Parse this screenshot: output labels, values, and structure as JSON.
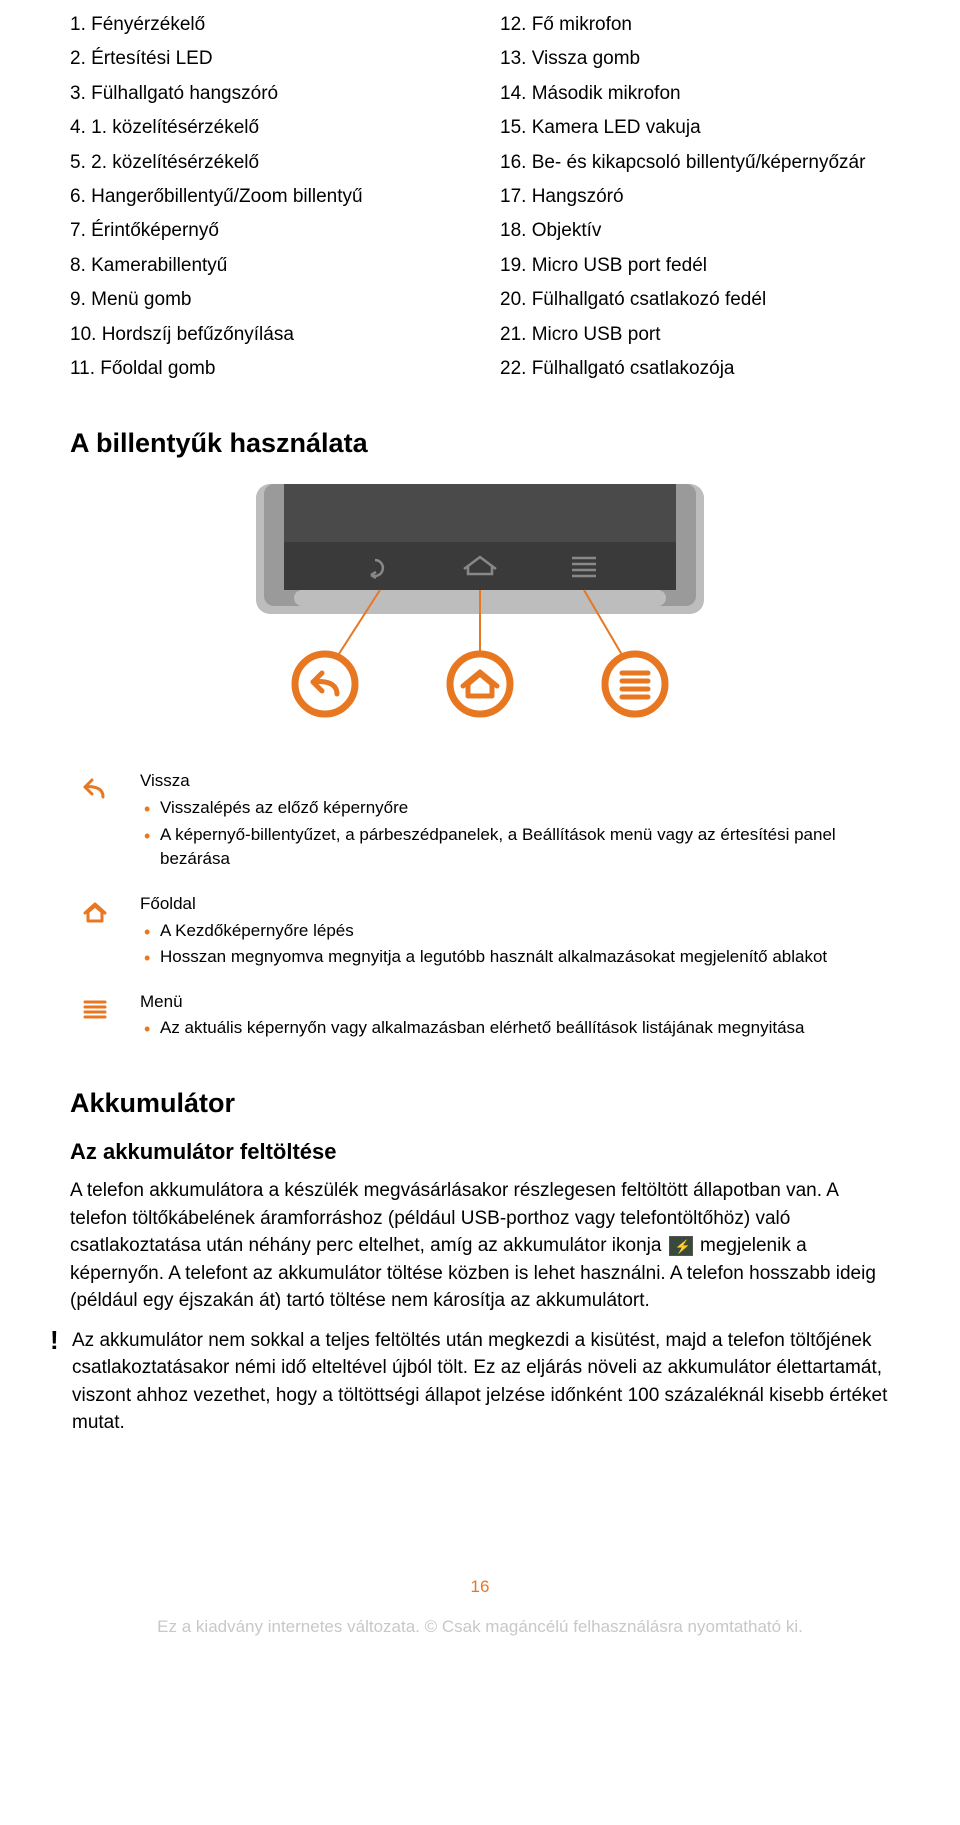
{
  "colors": {
    "accent": "#e87722",
    "text": "#000000",
    "footer": "#c8c8c8",
    "phone_body": "#9a9a9a",
    "phone_body_light": "#bdbdbd",
    "phone_screen": "#4a4a4a",
    "phone_nav": "#3a3a3a"
  },
  "parts_left": [
    "1. Fényérzékelő",
    "2. Értesítési LED",
    "3. Fülhallgató hangszóró",
    "4. 1. közelítésérzékelő",
    "5. 2. közelítésérzékelő",
    "6. Hangerőbillentyű/Zoom billentyű",
    "7. Érintőképernyő",
    "8. Kamerabillentyű",
    "9. Menü gomb",
    "10. Hordszíj befűzőnyílása",
    "11. Főoldal gomb"
  ],
  "parts_right": [
    "12. Fő mikrofon",
    "13. Vissza gomb",
    "14. Második mikrofon",
    "15. Kamera LED vakuja",
    "16. Be- és kikapcsoló billentyű/képernyőzár",
    "17. Hangszóró",
    "18. Objektív",
    "19. Micro USB port fedél",
    "20. Fülhallgató csatlakozó fedél",
    "21. Micro USB port",
    "22. Fülhallgató csatlakozója"
  ],
  "section1_title": "A billentyűk használata",
  "buttons": {
    "back": {
      "title": "Vissza",
      "items": [
        "Visszalépés az előző képernyőre",
        "A képernyő-billentyűzet, a párbeszédpanelek, a Beállítások menü vagy az értesítési panel bezárása"
      ]
    },
    "home": {
      "title": "Főoldal",
      "items": [
        "A Kezdőképernyőre lépés",
        "Hosszan megnyomva megnyitja a legutóbb használt alkalmazásokat megjelenítő ablakot"
      ]
    },
    "menu": {
      "title": "Menü",
      "items": [
        "Az aktuális képernyőn vagy alkalmazásban elérhető beállítások listájának megnyitása"
      ]
    }
  },
  "section2_title": "Akkumulátor",
  "subsection_title": "Az akkumulátor feltöltése",
  "para1_a": "A telefon akkumulátora a készülék megvásárlásakor részlegesen feltöltött állapotban van. A telefon töltőkábelének áramforráshoz (például USB-porthoz vagy telefontöltőhöz) való csatlakoztatása után néhány perc eltelhet, amíg az akkumulátor ikonja ",
  "para1_b": " megjelenik a képernyőn. A telefont az akkumulátor töltése közben is lehet használni. A telefon hosszabb ideig (például egy éjszakán át) tartó töltése nem károsítja az akkumulátort.",
  "para2": "Az akkumulátor nem sokkal a teljes feltöltés után megkezdi a kisütést, majd a telefon töltőjének csatlakoztatásakor némi idő elteltével újból tölt. Ez az eljárás növeli az akkumulátor élettartamát, viszont ahhoz vezethet, hogy a töltöttségi állapot jelzése időnként 100 százaléknál kisebb értéket mutat.",
  "page_number": "16",
  "footer": "Ez a kiadvány internetes változata. © Csak magáncélú felhasználásra nyomtatható ki."
}
